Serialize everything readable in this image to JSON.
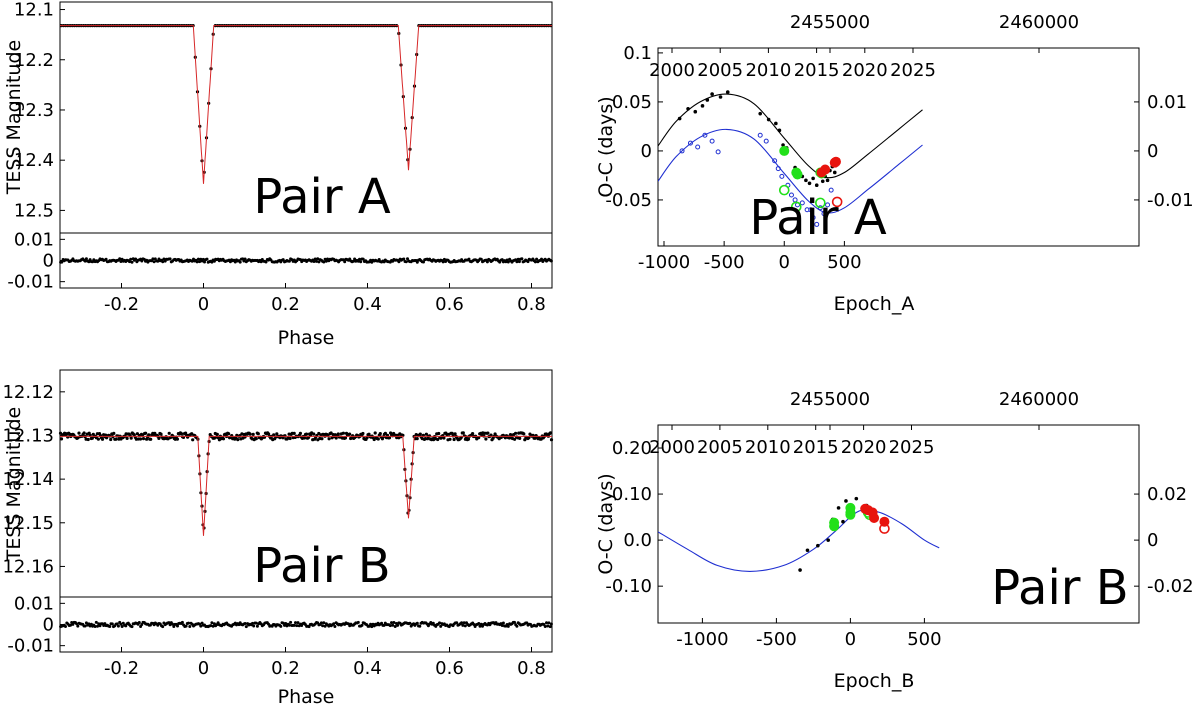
{
  "chart_data": [
    {
      "id": "lcA",
      "type": "line",
      "title": "Pair A",
      "xlabel": "",
      "ylabel": "TESS Magnitude",
      "xlim": [
        -0.35,
        0.85
      ],
      "ylim": [
        12.545,
        12.085
      ],
      "yticks": [
        12.1,
        12.2,
        12.3,
        12.4,
        12.5
      ],
      "yticklabels": [
        "12.1",
        "12.2",
        "12.3",
        "12.4",
        "12.5"
      ],
      "model": {
        "baseline": 12.132,
        "eclipses": [
          {
            "phase": 0.0,
            "depth": 0.315,
            "width": 0.025
          },
          {
            "phase": 0.5,
            "depth": 0.288,
            "width": 0.025
          }
        ]
      },
      "series": [
        {
          "name": "TESS data",
          "color": "#000000"
        },
        {
          "name": "model",
          "color": "#d62728"
        }
      ]
    },
    {
      "id": "resA",
      "type": "scatter",
      "xlabel": "Phase",
      "ylabel": "",
      "xlim": [
        -0.35,
        0.85
      ],
      "ylim": [
        -0.013,
        0.013
      ],
      "xticks": [
        -0.2,
        0,
        0.2,
        0.4,
        0.6,
        0.8
      ],
      "xticklabels": [
        "-0.2",
        "0",
        "0.2",
        "0.4",
        "0.6",
        "0.8"
      ],
      "yticks": [
        0.01,
        0,
        -0.01
      ],
      "yticklabels": [
        "0.01",
        "0",
        "-0.01"
      ],
      "series": [
        {
          "name": "residuals",
          "color": "#000000",
          "scatter": 0.0008
        }
      ]
    },
    {
      "id": "lcB",
      "type": "line",
      "title": "Pair B",
      "xlabel": "",
      "ylabel": "TESS Magnitude",
      "xlim": [
        -0.35,
        0.85
      ],
      "ylim": [
        12.167,
        12.115
      ],
      "yticks": [
        12.12,
        12.13,
        12.14,
        12.15,
        12.16
      ],
      "yticklabels": [
        "12.12",
        "12.13",
        "12.14",
        "12.15",
        "12.16"
      ],
      "model": {
        "baseline": 12.1302,
        "eclipses": [
          {
            "phase": 0.0,
            "depth": 0.0228,
            "width": 0.014
          },
          {
            "phase": 0.5,
            "depth": 0.0188,
            "width": 0.014
          }
        ]
      },
      "series": [
        {
          "name": "TESS data",
          "color": "#000000",
          "scatter": 0.0008
        },
        {
          "name": "model",
          "color": "#d62728"
        }
      ]
    },
    {
      "id": "resB",
      "type": "scatter",
      "xlabel": "Phase",
      "ylabel": "",
      "xlim": [
        -0.35,
        0.85
      ],
      "ylim": [
        -0.013,
        0.013
      ],
      "xticks": [
        -0.2,
        0,
        0.2,
        0.4,
        0.6,
        0.8
      ],
      "xticklabels": [
        "-0.2",
        "0",
        "0.2",
        "0.4",
        "0.6",
        "0.8"
      ],
      "yticks": [
        0.01,
        0,
        -0.01
      ],
      "yticklabels": [
        "0.01",
        "0",
        "-0.01"
      ],
      "series": [
        {
          "name": "residuals",
          "color": "#000000",
          "scatter": 0.001
        }
      ]
    },
    {
      "id": "ocA",
      "type": "scatter",
      "title": "Pair A",
      "xlabel": "Epoch_A",
      "ylabel": "O-C (days)",
      "xlim": [
        -1050,
        2950
      ],
      "ylim": [
        -0.097,
        0.105
      ],
      "xticks": [
        -1000,
        -500,
        0,
        500
      ],
      "xticklabels": [
        "-1000",
        "-500",
        "0",
        "500"
      ],
      "yticks": [
        0.1,
        0.05,
        0,
        -0.05
      ],
      "yticklabels": [
        "0.1",
        "0.05",
        "0",
        "-0.05"
      ],
      "top_axis": {
        "label_ticks": [
          "2455000",
          "2460000"
        ],
        "year_ticks": [
          "2000",
          "2005",
          "2010",
          "2015",
          "2020",
          "2025"
        ],
        "year_start": 2000
      },
      "right_axis": {
        "ticks": [
          0.01,
          0,
          -0.01
        ],
        "labels": [
          "0.01",
          "0",
          "-0.01"
        ],
        "scale": 0.2
      },
      "curves": [
        {
          "name": "fit black",
          "color": "#000000",
          "offset": 0.0,
          "points": [
            [
              -1050,
              0.005
            ],
            [
              -900,
              0.03
            ],
            [
              -700,
              0.05
            ],
            [
              -480,
              0.058
            ],
            [
              -250,
              0.048
            ],
            [
              0,
              0.013
            ],
            [
              200,
              -0.015
            ],
            [
              350,
              -0.027
            ],
            [
              500,
              -0.022
            ],
            [
              700,
              -0.003
            ],
            [
              950,
              0.022
            ],
            [
              1150,
              0.042
            ]
          ]
        },
        {
          "name": "fit blue",
          "color": "#1f2fd1",
          "offset": -0.036,
          "points": [
            [
              -1050,
              0.005
            ],
            [
              -900,
              0.03
            ],
            [
              -700,
              0.05
            ],
            [
              -480,
              0.058
            ],
            [
              -250,
              0.048
            ],
            [
              0,
              0.013
            ],
            [
              200,
              -0.015
            ],
            [
              350,
              -0.027
            ],
            [
              500,
              -0.022
            ],
            [
              700,
              -0.003
            ],
            [
              950,
              0.022
            ],
            [
              1150,
              0.042
            ]
          ]
        }
      ],
      "data_primary_black": [
        [
          -870,
          0.033
        ],
        [
          -800,
          0.043
        ],
        [
          -740,
          0.04
        ],
        [
          -680,
          0.046
        ],
        [
          -640,
          0.052
        ],
        [
          -600,
          0.058
        ],
        [
          -530,
          0.055
        ],
        [
          -470,
          0.06
        ],
        [
          -200,
          0.038
        ],
        [
          -130,
          0.032
        ],
        [
          -70,
          0.028
        ],
        [
          -40,
          0.021
        ],
        [
          -10,
          0.006
        ],
        [
          20,
          0.003
        ],
        [
          90,
          -0.017
        ],
        [
          120,
          -0.02
        ],
        [
          150,
          -0.026
        ],
        [
          180,
          -0.03
        ],
        [
          210,
          -0.033
        ],
        [
          240,
          -0.028
        ],
        [
          270,
          -0.035
        ],
        [
          300,
          -0.023
        ],
        [
          320,
          -0.031
        ],
        [
          340,
          -0.026
        ],
        [
          360,
          -0.03
        ],
        [
          380,
          -0.02
        ],
        [
          400,
          -0.016
        ],
        [
          420,
          -0.022
        ]
      ],
      "data_secondary_blue": [
        [
          -850,
          0.0
        ],
        [
          -780,
          0.008
        ],
        [
          -720,
          0.004
        ],
        [
          -660,
          0.016
        ],
        [
          -600,
          0.01
        ],
        [
          -550,
          -0.001
        ],
        [
          -200,
          0.016
        ],
        [
          -150,
          0.01
        ],
        [
          -80,
          -0.01
        ],
        [
          -50,
          -0.018
        ],
        [
          -20,
          -0.026
        ],
        [
          30,
          -0.035
        ],
        [
          60,
          -0.045
        ],
        [
          90,
          -0.05
        ],
        [
          110,
          -0.055
        ],
        [
          150,
          -0.053
        ],
        [
          190,
          -0.06
        ],
        [
          220,
          -0.06
        ],
        [
          240,
          -0.068
        ],
        [
          270,
          -0.075
        ],
        [
          300,
          -0.058
        ],
        [
          330,
          -0.064
        ],
        [
          360,
          -0.055
        ],
        [
          390,
          -0.04
        ]
      ],
      "tess_primary": [
        [
          0,
          0.0
        ],
        [
          100,
          -0.022
        ],
        [
          110,
          -0.024
        ],
        [
          300,
          -0.022
        ],
        [
          310,
          -0.023
        ]
      ],
      "tess_secondary": [
        [
          0,
          -0.04
        ],
        [
          100,
          -0.057
        ],
        [
          300,
          -0.053
        ]
      ],
      "new_primary": [
        [
          310,
          -0.022
        ],
        [
          340,
          -0.019
        ],
        [
          420,
          -0.012
        ],
        [
          430,
          -0.011
        ]
      ],
      "new_secondary": [
        [
          440,
          -0.052
        ]
      ]
    },
    {
      "id": "ocB",
      "type": "scatter",
      "title": "Pair B",
      "xlabel": "Epoch_B",
      "ylabel": "O-C (days)",
      "xlim": [
        -1300,
        1950
      ],
      "ylim": [
        -0.18,
        0.25
      ],
      "xticks": [
        -1000,
        -500,
        0,
        500
      ],
      "xticklabels": [
        "-1000",
        "-500",
        "0",
        "500"
      ],
      "yticks": [
        0.2,
        0.1,
        0,
        -0.1
      ],
      "yticklabels": [
        "0.20",
        "0.10",
        "0.0",
        "-0.10"
      ],
      "top_axis": {
        "label_ticks": [
          "2455000",
          "2460000"
        ],
        "year_ticks": [
          "2000",
          "2005",
          "2010",
          "2015",
          "2020",
          "2025"
        ],
        "year_start": 2000
      },
      "right_axis": {
        "ticks": [
          0.02,
          0,
          -0.02
        ],
        "labels": [
          "0.02",
          "0",
          "-0.02"
        ],
        "scale": 0.2
      },
      "curves": [
        {
          "name": "fit blue",
          "color": "#1f2fd1",
          "offset": 0.0,
          "points": [
            [
              -1300,
              0.018
            ],
            [
              -1100,
              -0.02
            ],
            [
              -900,
              -0.055
            ],
            [
              -680,
              -0.068
            ],
            [
              -450,
              -0.055
            ],
            [
              -250,
              -0.02
            ],
            [
              -100,
              0.02
            ],
            [
              0,
              0.05
            ],
            [
              80,
              0.065
            ],
            [
              200,
              0.06
            ],
            [
              350,
              0.035
            ],
            [
              500,
              0.0
            ],
            [
              600,
              -0.017
            ]
          ]
        }
      ],
      "data_primary_black": [
        [
          -340,
          -0.065
        ],
        [
          -290,
          -0.022
        ],
        [
          -220,
          -0.012
        ],
        [
          -150,
          0.0
        ],
        [
          -120,
          0.045
        ],
        [
          -80,
          0.07
        ],
        [
          -50,
          0.04
        ],
        [
          -30,
          0.085
        ],
        [
          40,
          0.09
        ],
        [
          80,
          0.07
        ],
        [
          110,
          0.075
        ]
      ],
      "data_secondary_blue": [
        [
          110,
          0.062
        ],
        [
          150,
          0.065
        ],
        [
          160,
          0.06
        ]
      ],
      "tess_primary": [
        [
          -110,
          0.038
        ],
        [
          -110,
          0.03
        ],
        [
          0,
          0.07
        ],
        [
          0,
          0.06
        ],
        [
          0,
          0.055
        ]
      ],
      "tess_secondary": [
        [
          120,
          0.06
        ],
        [
          130,
          0.055
        ]
      ],
      "new_primary": [
        [
          100,
          0.068
        ],
        [
          120,
          0.065
        ],
        [
          150,
          0.06
        ],
        [
          160,
          0.048
        ],
        [
          230,
          0.04
        ]
      ],
      "new_secondary": [
        [
          230,
          0.025
        ]
      ]
    }
  ]
}
